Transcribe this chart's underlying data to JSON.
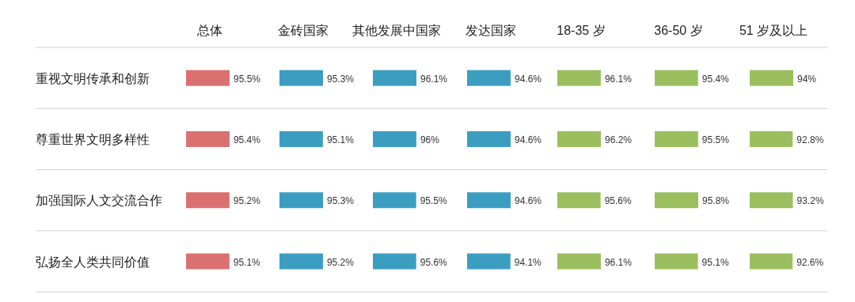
{
  "chart_data": [
    {
      "type": "bar",
      "orientation": "horizontal",
      "title": "总体",
      "categories": [
        "重视文明传承和创新",
        "尊重世界文明多样性",
        "加强国际人文交流合作",
        "弘扬全人类共同价值"
      ],
      "values": [
        95.5,
        95.4,
        95.2,
        95.1
      ],
      "value_labels": [
        "95.5%",
        "95.4%",
        "95.2%",
        "95.1%"
      ],
      "color": "#da7170",
      "tick_labels": "y"
    },
    {
      "type": "bar",
      "orientation": "horizontal",
      "title": "金砖国家",
      "categories": [
        null,
        null,
        null,
        null
      ],
      "values": [
        95.3,
        95.1,
        95.3,
        95.2
      ],
      "value_labels": [
        "95.3%",
        "95.1%",
        "95.3%",
        "95.2%"
      ],
      "color": "#3b9ec1",
      "tick_labels": false
    },
    {
      "type": "bar",
      "orientation": "horizontal",
      "title": "其他发展中国家",
      "categories": [
        null,
        null,
        null,
        null
      ],
      "values": [
        96.1,
        96,
        95.5,
        95.6
      ],
      "value_labels": [
        "96.1%",
        "96%",
        "95.5%",
        "95.6%"
      ],
      "color": "#3b9ec1",
      "tick_labels": false
    },
    {
      "type": "bar",
      "orientation": "horizontal",
      "title": "发达国家",
      "categories": [
        null,
        null,
        null,
        null
      ],
      "values": [
        94.6,
        94.6,
        94.6,
        94.1
      ],
      "value_labels": [
        "94.6%",
        "94.6%",
        "94.6%",
        "94.1%"
      ],
      "color": "#3b9ec1",
      "tick_labels": false
    },
    {
      "type": "bar",
      "orientation": "horizontal",
      "title": "18-35 岁",
      "categories": [
        null,
        null,
        null,
        null
      ],
      "values": [
        96.1,
        96.2,
        95.6,
        96.1
      ],
      "value_labels": [
        "96.1%",
        "96.2%",
        "95.6%",
        "96.1%"
      ],
      "color": "#9bbf5f",
      "tick_labels": false
    },
    {
      "type": "bar",
      "orientation": "horizontal",
      "title": "36-50 岁",
      "categories": [
        null,
        null,
        null,
        null
      ],
      "values": [
        95.4,
        95.5,
        95.8,
        95.1
      ],
      "value_labels": [
        "95.4%",
        "95.5%",
        "95.8%",
        "95.1%"
      ],
      "color": "#9bbf5f",
      "tick_labels": false
    },
    {
      "type": "bar",
      "orientation": "horizontal",
      "title": "51 岁及以上",
      "categories": [
        null,
        null,
        null,
        null
      ],
      "values": [
        94,
        92.8,
        93.2,
        92.6
      ],
      "value_labels": [
        "94%",
        "92.8%",
        "93.2%",
        "92.6%"
      ],
      "color": "#9bbf5f",
      "tick_labels": false
    }
  ]
}
